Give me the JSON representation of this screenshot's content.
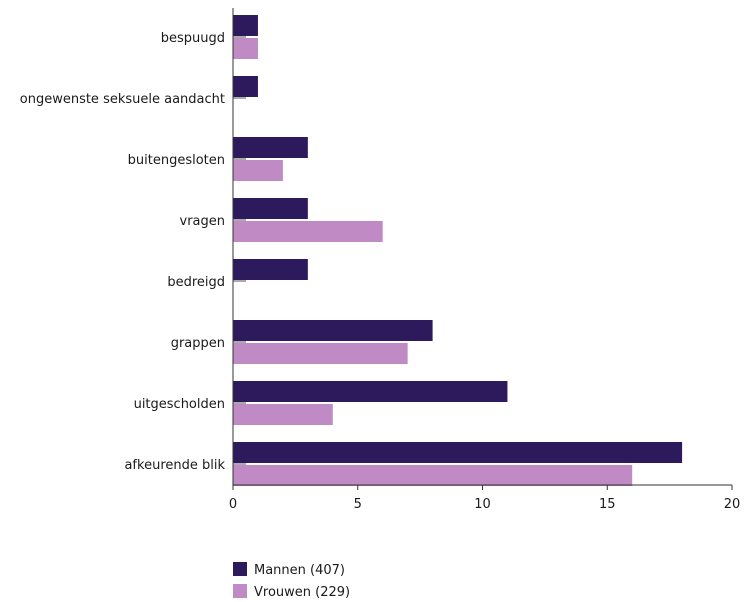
{
  "chart_data": {
    "type": "bar",
    "orientation": "horizontal",
    "categories": [
      "bespuugd",
      "ongewenste seksuele aandacht",
      "buitengesloten",
      "vragen",
      "bedreigd",
      "grappen",
      "uitgescholden",
      "afkeurende blik"
    ],
    "series": [
      {
        "name": "Mannen (407)",
        "color": "#2c1a5c",
        "values": [
          1,
          1,
          3,
          3,
          3,
          8,
          11,
          18
        ]
      },
      {
        "name": "Vrouwen (229)",
        "color": "#c08bc4",
        "values": [
          1,
          0,
          2,
          6,
          0,
          7,
          4,
          16
        ]
      }
    ],
    "xlim": [
      0,
      20
    ],
    "xticks": [
      "0",
      "5",
      "10",
      "15",
      "20"
    ],
    "xlabel": "",
    "ylabel": "",
    "title": "",
    "legend_position": "bottom-center"
  }
}
